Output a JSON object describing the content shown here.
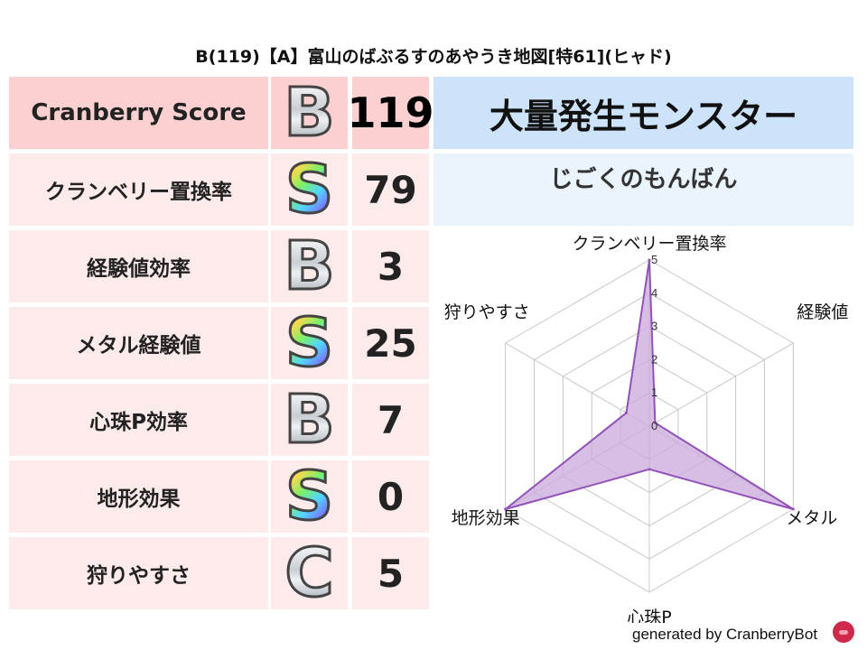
{
  "title": "B(119)【A】富山のばぶるすのあやうき地図[特61](ヒャド)",
  "score": {
    "label": "Cranberry Score",
    "grade": "B",
    "value": "119"
  },
  "rows": [
    {
      "label": "クランベリー置換率",
      "grade": "S",
      "value": "79"
    },
    {
      "label": "経験値効率",
      "grade": "B",
      "value": "3"
    },
    {
      "label": "メタル経験値",
      "grade": "S",
      "value": "25"
    },
    {
      "label": "心珠P効率",
      "grade": "B",
      "value": "7"
    },
    {
      "label": "地形効果",
      "grade": "S",
      "value": "0"
    },
    {
      "label": "狩りやすさ",
      "grade": "C",
      "value": "5"
    }
  ],
  "monster": {
    "heading": "大量発生モンスター",
    "name": "じごくのもんばん"
  },
  "footer": {
    "text": "generated by CranberryBot",
    "icon": "cranberry-bot-icon"
  },
  "colors": {
    "fill": "#c9a8dc",
    "stroke": "#9352b8",
    "header": "#fcd0d1",
    "row": "#fdeaea",
    "monster_header": "#cde3fa",
    "monster_row": "#eaf4fd"
  },
  "chart_data": {
    "type": "radar",
    "axes": [
      "クランベリー置換率",
      "経験値",
      "メタル",
      "心珠P",
      "地形効果",
      "狩りやすさ"
    ],
    "values": [
      5,
      0.2,
      5,
      1.3,
      5,
      0.8
    ],
    "range": [
      0,
      5
    ],
    "ticks": [
      "0",
      "1",
      "2",
      "3",
      "4",
      "5"
    ],
    "grid": true
  }
}
